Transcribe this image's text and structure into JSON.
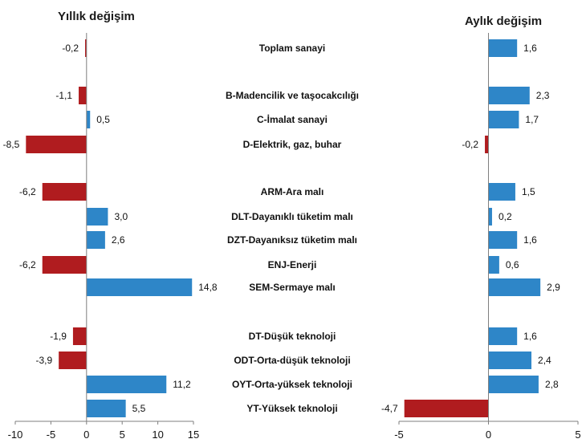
{
  "colors": {
    "positive": "#2e86c8",
    "negative": "#b01c1f",
    "axis": "#7f7f7f",
    "text": "#111111"
  },
  "chart_data": {
    "type": "bar",
    "orientation": "horizontal",
    "categories": [
      "Toplam sanayi",
      "B-Madencilik ve taşocakcılığı",
      "C-İmalat sanayi",
      "D-Elektrik, gaz, buhar",
      "ARM-Ara malı",
      "DLT-Dayanıklı tüketim malı",
      "DZT-Dayanıksız tüketim malı",
      "ENJ-Enerji",
      "SEM-Sermaye malı",
      "DT-Düşük teknoloji",
      "ODT-Orta-düşük teknoloji",
      "OYT-Orta-yüksek teknoloji",
      "YT-Yüksek teknoloji"
    ],
    "groups": [
      [
        0
      ],
      [
        1,
        2,
        3
      ],
      [
        4,
        5,
        6,
        7,
        8
      ],
      [
        9,
        10,
        11,
        12
      ]
    ],
    "panels": [
      {
        "title": "Yıllık değişim",
        "values": [
          -0.2,
          -1.1,
          0.5,
          -8.5,
          -6.2,
          3.0,
          2.6,
          -6.2,
          14.8,
          -1.9,
          -3.9,
          11.2,
          5.5
        ],
        "labels": [
          "-0,2",
          "-1,1",
          "0,5",
          "-8,5",
          "-6,2",
          "3,0",
          "2,6",
          "-6,2",
          "14,8",
          "-1,9",
          "-3,9",
          "11,2",
          "5,5"
        ],
        "xlim": [
          -10,
          15
        ],
        "ticks": [
          -10,
          -5,
          0,
          5,
          10,
          15
        ],
        "tick_labels": [
          "-10",
          "-5",
          "0",
          "5",
          "10",
          "15"
        ]
      },
      {
        "title": "Aylık değişim",
        "values": [
          1.6,
          2.3,
          1.7,
          -0.2,
          1.5,
          0.2,
          1.6,
          0.6,
          2.9,
          1.6,
          2.4,
          2.8,
          -4.7
        ],
        "labels": [
          "1,6",
          "2,3",
          "1,7",
          "-0,2",
          "1,5",
          "0,2",
          "1,6",
          "0,6",
          "2,9",
          "1,6",
          "2,4",
          "2,8",
          "-4,7"
        ],
        "xlim": [
          -5,
          5
        ],
        "ticks": [
          -5,
          0,
          5
        ],
        "tick_labels": [
          "-5",
          "0",
          "5"
        ]
      }
    ]
  }
}
